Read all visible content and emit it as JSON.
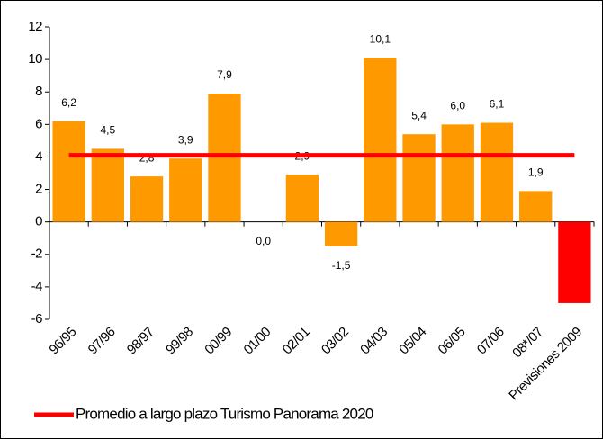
{
  "chart_data": {
    "type": "bar",
    "categories": [
      "96/95",
      "97/96",
      "98/97",
      "99/98",
      "00/99",
      "01/00",
      "02/01",
      "03/02",
      "04/03",
      "05/04",
      "06/05",
      "07/06",
      "08*/07",
      "Previsiones 2009"
    ],
    "values": [
      6.2,
      4.5,
      2.8,
      3.9,
      7.9,
      0.0,
      2.9,
      -1.5,
      10.1,
      5.4,
      6.0,
      6.1,
      1.9,
      -5
    ],
    "value_labels": [
      "6,2",
      "4,5",
      "2,8",
      "3,9",
      "7,9",
      "0,0",
      "2,9",
      "-1,5",
      "10,1",
      "5,4",
      "6,0",
      "6,1",
      "1,9",
      null
    ],
    "colors": [
      "#ff9900",
      "#ff9900",
      "#ff9900",
      "#ff9900",
      "#ff9900",
      "#ff9900",
      "#ff9900",
      "#ff9900",
      "#ff9900",
      "#ff9900",
      "#ff9900",
      "#ff9900",
      "#ff9900",
      "#ff0000"
    ],
    "reference_line": {
      "name": "Promedio a largo plazo Turismo Panorama 2020",
      "value": 4.1,
      "color": "#ff0000"
    },
    "ylim": [
      -6,
      12
    ],
    "yticks": [
      -6,
      -4,
      -2,
      0,
      2,
      4,
      6,
      8,
      10,
      12
    ],
    "grid": false
  }
}
